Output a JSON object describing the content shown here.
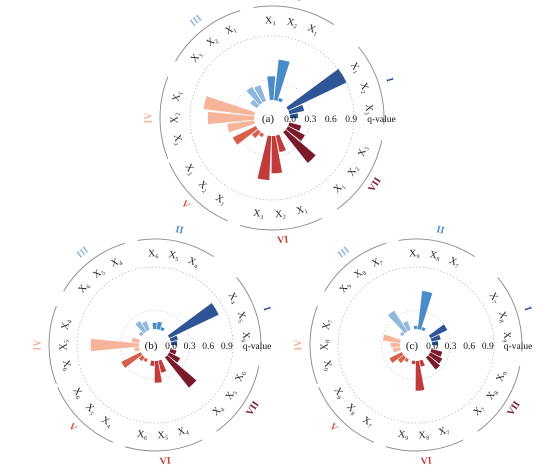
{
  "figure": {
    "group_colors": {
      "I": "#2f5597",
      "II": "#4a8cc7",
      "III": "#8fb8dc",
      "IV": "#f6b49a",
      "V": "#d7604d",
      "VI": "#c23b3b",
      "VII": "#7a1a2a"
    },
    "tick_labels": [
      "0.0",
      "0.3",
      "0.6",
      "0.9"
    ],
    "axis_title": "q-value"
  },
  "chart_data": [
    {
      "type": "polar-bar",
      "panel_label": "(a)",
      "r_range": [
        0,
        0.9
      ],
      "groups": [
        {
          "id": "I",
          "label": "I",
          "vars": [
            {
              "label": "X₁",
              "value": 0.95
            },
            {
              "label": "X₂",
              "value": 0.22
            },
            {
              "label": "X₃",
              "value": 0.12
            }
          ]
        },
        {
          "id": "VII",
          "label": "VII",
          "vars": [
            {
              "label": "X₃",
              "value": 0.18
            },
            {
              "label": "X₂",
              "value": 0.28
            },
            {
              "label": "X₁",
              "value": 0.58
            }
          ]
        },
        {
          "id": "VI",
          "label": "VI",
          "vars": [
            {
              "label": "X₁",
              "value": 0.25
            },
            {
              "label": "X₂",
              "value": 0.55
            },
            {
              "label": "X₃",
              "value": 0.65
            }
          ]
        },
        {
          "id": "V",
          "label": "V",
          "vars": [
            {
              "label": "X₁",
              "value": 0.05
            },
            {
              "label": "X₂",
              "value": 0.12
            },
            {
              "label": "X₃",
              "value": 0.38
            }
          ]
        },
        {
          "id": "IV",
          "label": "IV",
          "vars": [
            {
              "label": "X₃",
              "value": 0.4
            },
            {
              "label": "X₂",
              "value": 0.68
            },
            {
              "label": "X₁",
              "value": 0.75
            }
          ]
        },
        {
          "id": "III",
          "label": "III",
          "vars": [
            {
              "label": "X₃",
              "value": 0.12
            },
            {
              "label": "X₂",
              "value": 0.28
            },
            {
              "label": "X₁",
              "value": 0.25
            }
          ]
        },
        {
          "id": "II",
          "label": "II",
          "vars": [
            {
              "label": "X₃",
              "value": 0.35
            },
            {
              "label": "X₂",
              "value": 0.6
            },
            {
              "label": "X₁",
              "value": 0.05
            }
          ]
        }
      ]
    },
    {
      "type": "polar-bar",
      "panel_label": "(b)",
      "r_range": [
        0,
        0.9
      ],
      "groups": [
        {
          "id": "I",
          "label": "I",
          "vars": [
            {
              "label": "X₄",
              "value": 0.88
            },
            {
              "label": "X₅",
              "value": 0.12
            },
            {
              "label": "X₆",
              "value": 0.1
            }
          ]
        },
        {
          "id": "VII",
          "label": "VII",
          "vars": [
            {
              "label": "X₆",
              "value": 0.1
            },
            {
              "label": "X₅",
              "value": 0.2
            },
            {
              "label": "X₄",
              "value": 0.62
            }
          ]
        },
        {
          "id": "VI",
          "label": "VI",
          "vars": [
            {
              "label": "X₄",
              "value": 0.2
            },
            {
              "label": "X₅",
              "value": 0.35
            },
            {
              "label": "X₆",
              "value": 0.08
            }
          ]
        },
        {
          "id": "V",
          "label": "V",
          "vars": [
            {
              "label": "X₄",
              "value": 0.05
            },
            {
              "label": "X₅",
              "value": 0.08
            },
            {
              "label": "X₆",
              "value": 0.35
            }
          ]
        },
        {
          "id": "IV",
          "label": "IV",
          "vars": [
            {
              "label": "X₆",
              "value": 0.08
            },
            {
              "label": "X₅",
              "value": 0.78
            },
            {
              "label": "X₄",
              "value": 0.12
            }
          ]
        },
        {
          "id": "III",
          "label": "III",
          "vars": [
            {
              "label": "X₆",
              "value": 0.05
            },
            {
              "label": "X₅",
              "value": 0.2
            },
            {
              "label": "X₄",
              "value": 0.15
            }
          ]
        },
        {
          "id": "II",
          "label": "II",
          "vars": [
            {
              "label": "X₆",
              "value": 0.1
            },
            {
              "label": "X₅",
              "value": 0.12
            },
            {
              "label": "X₄",
              "value": 0.05
            }
          ]
        }
      ]
    },
    {
      "type": "polar-bar",
      "panel_label": "(c)",
      "r_range": [
        0,
        0.9
      ],
      "groups": [
        {
          "id": "I",
          "label": "I",
          "vars": [
            {
              "label": "X₇",
              "value": 0.3
            },
            {
              "label": "X₈",
              "value": 0.15
            },
            {
              "label": "X₉",
              "value": 0.1
            }
          ]
        },
        {
          "id": "VII",
          "label": "VII",
          "vars": [
            {
              "label": "X₉",
              "value": 0.18
            },
            {
              "label": "X₈",
              "value": 0.22
            },
            {
              "label": "X₇",
              "value": 0.25
            }
          ]
        },
        {
          "id": "VI",
          "label": "VI",
          "vars": [
            {
              "label": "X₇",
              "value": 0.1
            },
            {
              "label": "X₈",
              "value": 0.48
            },
            {
              "label": "X₉",
              "value": 0.05
            }
          ]
        },
        {
          "id": "V",
          "label": "V",
          "vars": [
            {
              "label": "X₇",
              "value": 0.05
            },
            {
              "label": "X₈",
              "value": 0.12
            },
            {
              "label": "X₉",
              "value": 0.22
            }
          ]
        },
        {
          "id": "IV",
          "label": "IV",
          "vars": [
            {
              "label": "X₉",
              "value": 0.12
            },
            {
              "label": "X₈",
              "value": 0.15
            },
            {
              "label": "X₇",
              "value": 0.28
            }
          ]
        },
        {
          "id": "III",
          "label": "III",
          "vars": [
            {
              "label": "X₉",
              "value": 0.05
            },
            {
              "label": "X₈",
              "value": 0.4
            },
            {
              "label": "X₇",
              "value": 0.15
            }
          ]
        },
        {
          "id": "II",
          "label": "II",
          "vars": [
            {
              "label": "X₉",
              "value": 0.05
            },
            {
              "label": "X₈",
              "value": 0.62
            },
            {
              "label": "X₇",
              "value": 0.05
            }
          ]
        }
      ]
    }
  ]
}
